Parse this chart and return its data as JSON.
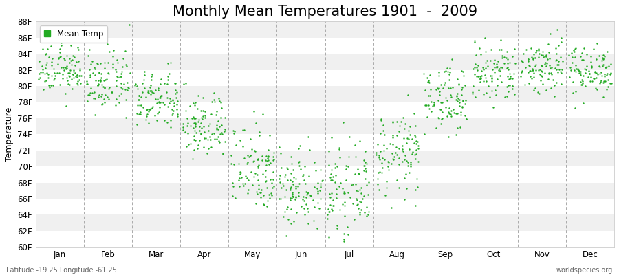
{
  "title": "Monthly Mean Temperatures 1901  -  2009",
  "ylabel": "Temperature",
  "xlabel_bottom_left": "Latitude -19.25 Longitude -61.25",
  "xlabel_bottom_right": "worldspecies.org",
  "legend_label": "Mean Temp",
  "dot_color": "#22aa22",
  "dot_size": 3,
  "ylim": [
    60,
    88
  ],
  "yticks": [
    60,
    62,
    64,
    66,
    68,
    70,
    72,
    74,
    76,
    78,
    80,
    82,
    84,
    86,
    88
  ],
  "ytick_labels": [
    "60F",
    "62F",
    "64F",
    "66F",
    "68F",
    "70F",
    "72F",
    "74F",
    "76F",
    "78F",
    "80F",
    "82F",
    "84F",
    "86F",
    "88F"
  ],
  "months": [
    "Jan",
    "Feb",
    "Mar",
    "Apr",
    "May",
    "Jun",
    "Jul",
    "Aug",
    "Sep",
    "Oct",
    "Nov",
    "Dec"
  ],
  "month_means": [
    82.0,
    80.5,
    78.2,
    75.0,
    70.0,
    67.5,
    67.0,
    71.5,
    78.5,
    81.5,
    82.5,
    82.0
  ],
  "month_stds": [
    1.5,
    1.8,
    1.8,
    2.0,
    2.8,
    2.5,
    2.5,
    2.5,
    2.0,
    2.0,
    1.8,
    1.5
  ],
  "n_points": 109,
  "bg_color": "#ffffff",
  "stripe_color_light": "#f0f0f0",
  "stripe_color_dark": "#e0e0e0",
  "grid_color": "#aaaaaa",
  "title_fontsize": 15,
  "axis_label_fontsize": 9,
  "tick_fontsize": 8.5
}
